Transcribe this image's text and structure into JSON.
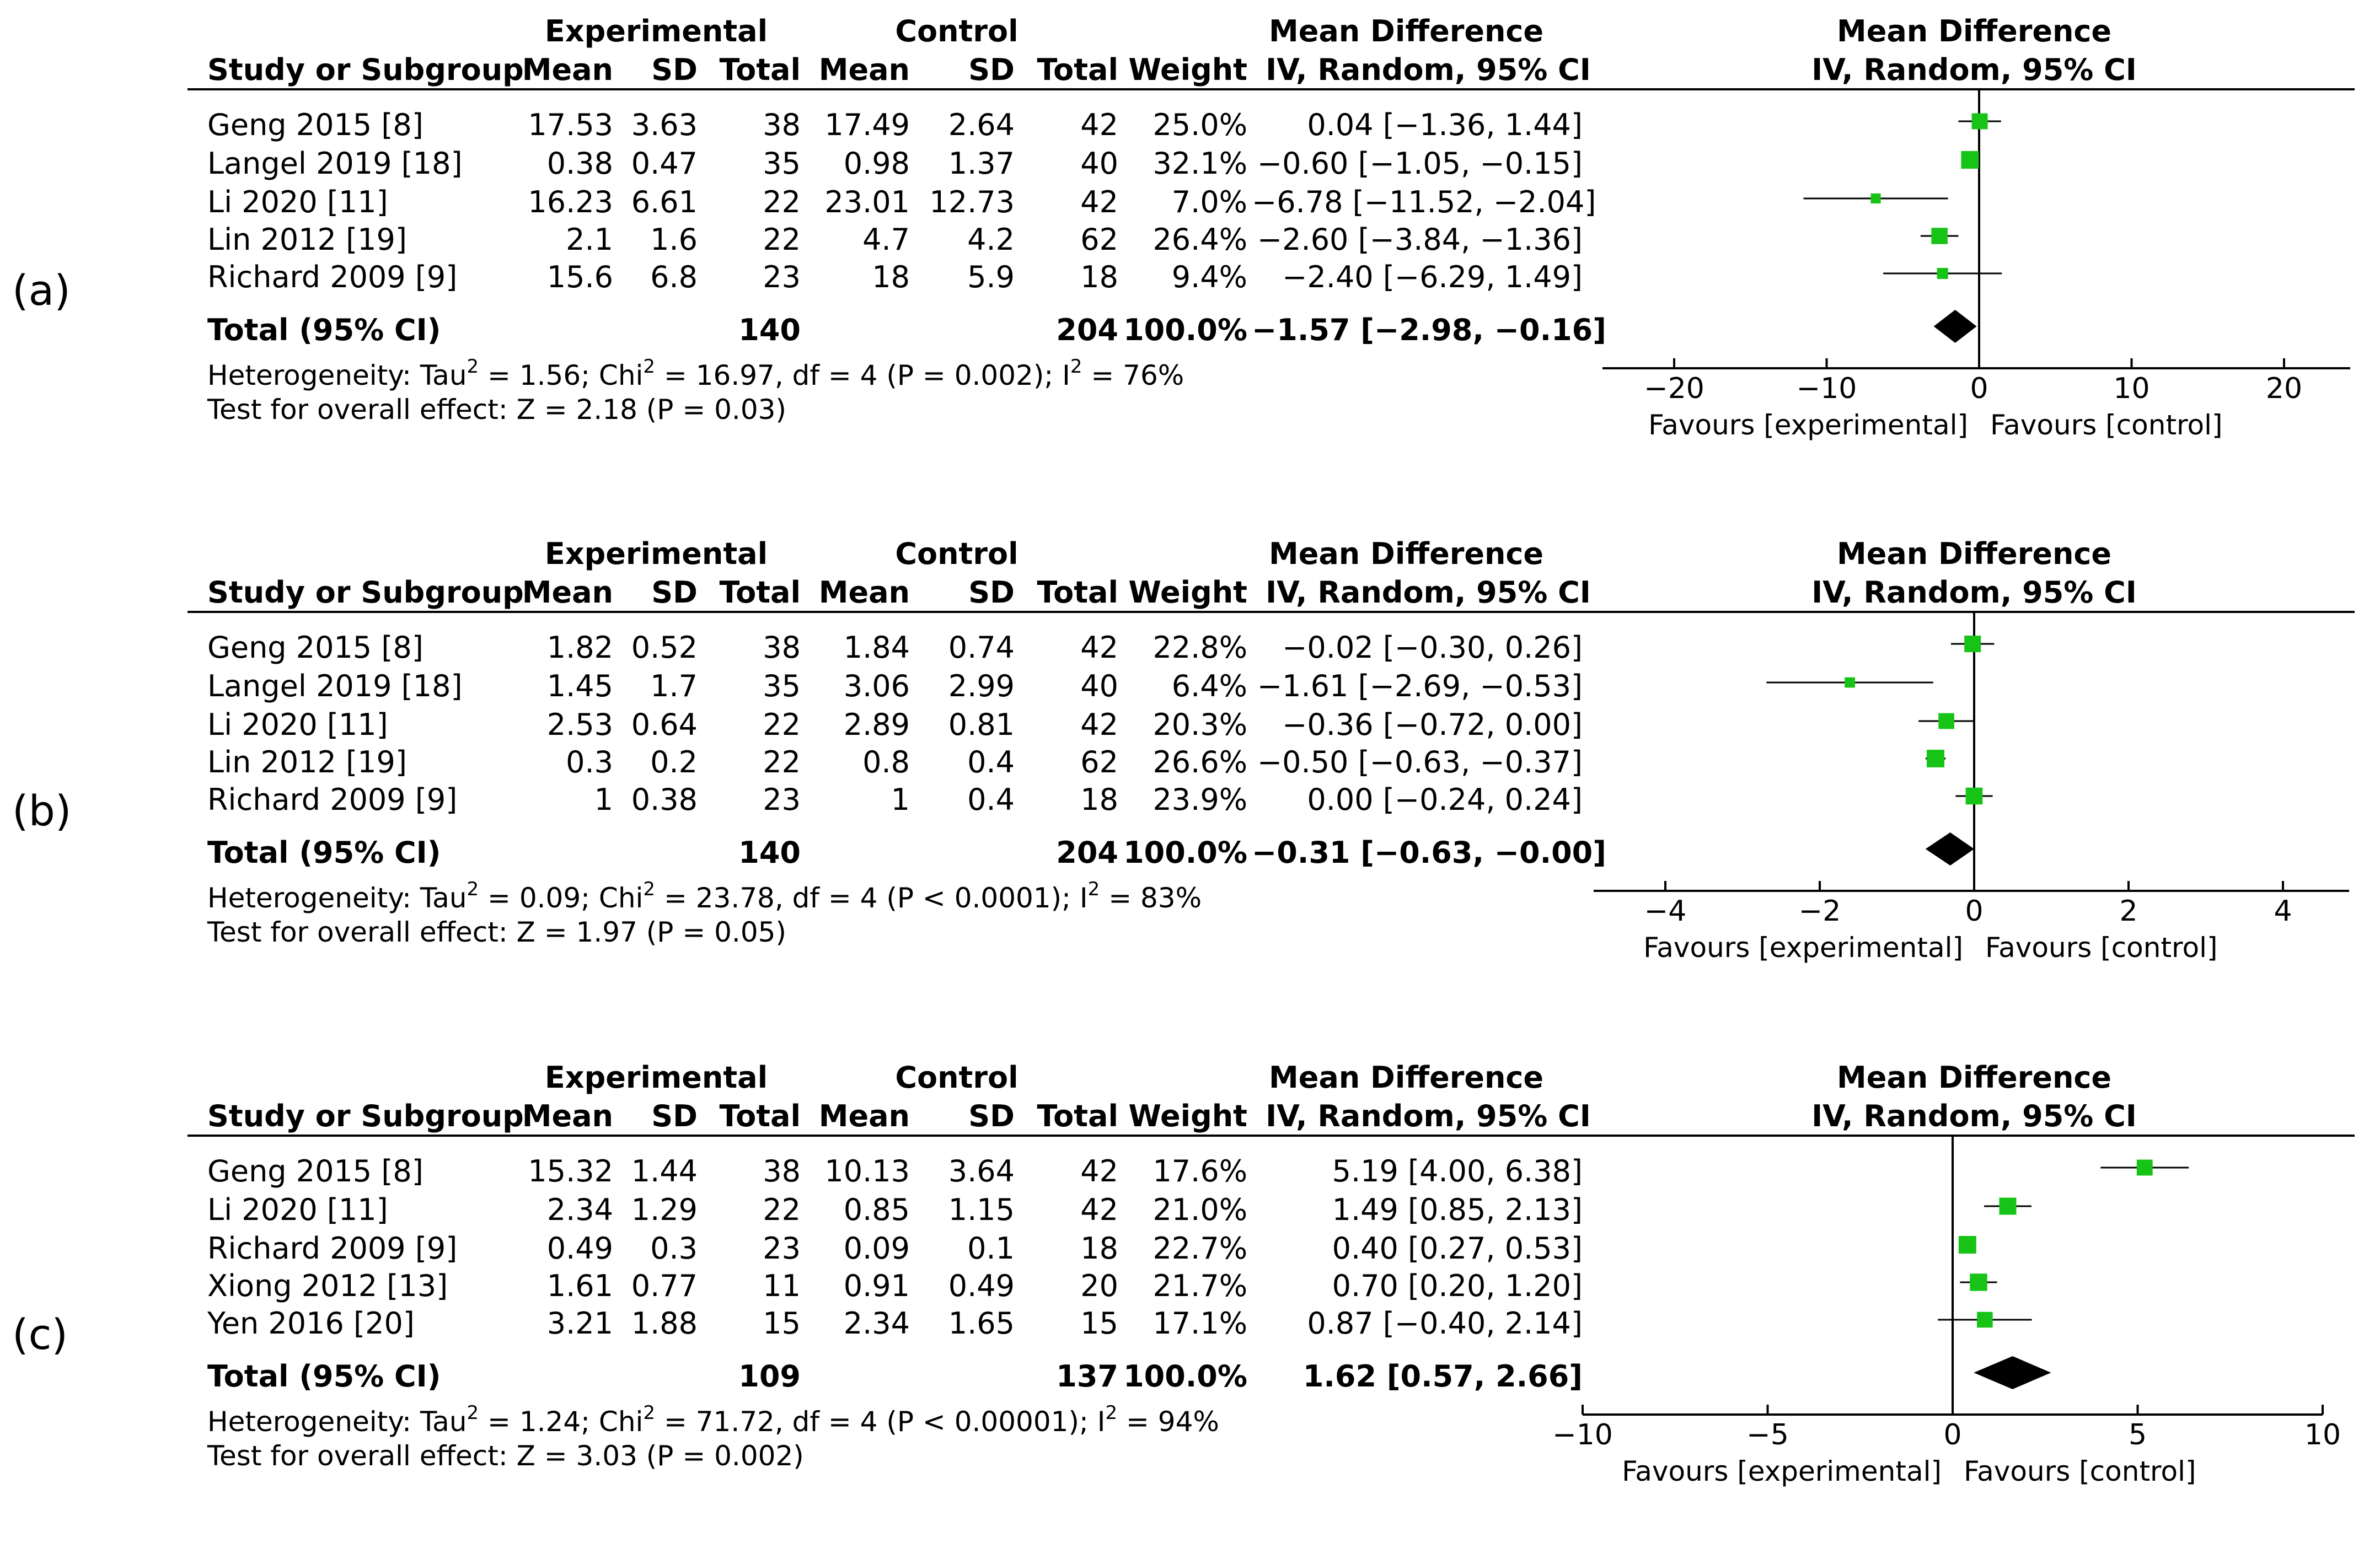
{
  "headers": {
    "experimental": "Experimental",
    "control": "Control",
    "study": "Study or Subgroup",
    "mean": "Mean",
    "sd": "SD",
    "total": "Total",
    "weight": "Weight",
    "md_title": "Mean Difference",
    "md_method": "IV, Random, 95% CI"
  },
  "colors": {
    "marker": "#18c318",
    "diamond": "#000000",
    "line": "#000000"
  },
  "panels": [
    {
      "label": "(a)",
      "rows": [
        {
          "study": "Geng 2015 [8]",
          "e_mean": "17.53",
          "e_sd": "3.63",
          "e_total": "38",
          "c_mean": "17.49",
          "c_sd": "2.64",
          "c_total": "42",
          "weight": "25.0%",
          "ci": "0.04 [−1.36, 1.44]"
        },
        {
          "study": "Langel 2019 [18]",
          "e_mean": "0.38",
          "e_sd": "0.47",
          "e_total": "35",
          "c_mean": "0.98",
          "c_sd": "1.37",
          "c_total": "40",
          "weight": "32.1%",
          "ci": "−0.60 [−1.05, −0.15]"
        },
        {
          "study": "Li 2020 [11]",
          "e_mean": "16.23",
          "e_sd": "6.61",
          "e_total": "22",
          "c_mean": "23.01",
          "c_sd": "12.73",
          "c_total": "42",
          "weight": "7.0%",
          "ci": "−6.78 [−11.52, −2.04]"
        },
        {
          "study": "Lin 2012 [19]",
          "e_mean": "2.1",
          "e_sd": "1.6",
          "e_total": "22",
          "c_mean": "4.7",
          "c_sd": "4.2",
          "c_total": "62",
          "weight": "26.4%",
          "ci": "−2.60 [−3.84, −1.36]"
        },
        {
          "study": "Richard 2009 [9]",
          "e_mean": "15.6",
          "e_sd": "6.8",
          "e_total": "23",
          "c_mean": "18",
          "c_sd": "5.9",
          "c_total": "18",
          "weight": "9.4%",
          "ci": "−2.40 [−6.29, 1.49]"
        }
      ],
      "total": {
        "label": "Total (95% CI)",
        "e_total": "140",
        "c_total": "204",
        "weight": "100.0%",
        "ci": "−1.57 [−2.98, −0.16]"
      },
      "heterogeneity": {
        "prefix": "Heterogeneity: Tau",
        "tau_sup": "2",
        "mid": " = 1.56; Chi",
        "chi_sup": "2",
        "rest": " = 16.97, df = 4 (P = 0.002); I",
        "i_sup": "2",
        "end": " = 76%"
      },
      "overall": "Test for overall effect: Z = 2.18 (P = 0.03)",
      "axis_ticks": [
        "−20",
        "−10",
        "0",
        "10",
        "20"
      ],
      "favours_left": "Favours [experimental]",
      "favours_right": "Favours [control]"
    },
    {
      "label": "(b)",
      "rows": [
        {
          "study": "Geng 2015 [8]",
          "e_mean": "1.82",
          "e_sd": "0.52",
          "e_total": "38",
          "c_mean": "1.84",
          "c_sd": "0.74",
          "c_total": "42",
          "weight": "22.8%",
          "ci": "−0.02 [−0.30, 0.26]"
        },
        {
          "study": "Langel 2019 [18]",
          "e_mean": "1.45",
          "e_sd": "1.7",
          "e_total": "35",
          "c_mean": "3.06",
          "c_sd": "2.99",
          "c_total": "40",
          "weight": "6.4%",
          "ci": "−1.61 [−2.69, −0.53]"
        },
        {
          "study": "Li 2020 [11]",
          "e_mean": "2.53",
          "e_sd": "0.64",
          "e_total": "22",
          "c_mean": "2.89",
          "c_sd": "0.81",
          "c_total": "42",
          "weight": "20.3%",
          "ci": "−0.36 [−0.72, 0.00]"
        },
        {
          "study": "Lin 2012 [19]",
          "e_mean": "0.3",
          "e_sd": "0.2",
          "e_total": "22",
          "c_mean": "0.8",
          "c_sd": "0.4",
          "c_total": "62",
          "weight": "26.6%",
          "ci": "−0.50 [−0.63, −0.37]"
        },
        {
          "study": "Richard 2009 [9]",
          "e_mean": "1",
          "e_sd": "0.38",
          "e_total": "23",
          "c_mean": "1",
          "c_sd": "0.4",
          "c_total": "18",
          "weight": "23.9%",
          "ci": "0.00 [−0.24, 0.24]"
        }
      ],
      "total": {
        "label": "Total (95% CI)",
        "e_total": "140",
        "c_total": "204",
        "weight": "100.0%",
        "ci": "−0.31 [−0.63, −0.00]"
      },
      "heterogeneity": {
        "prefix": "Heterogeneity: Tau",
        "tau_sup": "2",
        "mid": " = 0.09; Chi",
        "chi_sup": "2",
        "rest": " = 23.78, df = 4 (P < 0.0001); I",
        "i_sup": "2",
        "end": " = 83%"
      },
      "overall": "Test for overall effect: Z = 1.97 (P = 0.05)",
      "axis_ticks": [
        "−4",
        "−2",
        "0",
        "2",
        "4"
      ],
      "favours_left": "Favours [experimental]",
      "favours_right": "Favours [control]"
    },
    {
      "label": "(c)",
      "rows": [
        {
          "study": "Geng 2015 [8]",
          "e_mean": "15.32",
          "e_sd": "1.44",
          "e_total": "38",
          "c_mean": "10.13",
          "c_sd": "3.64",
          "c_total": "42",
          "weight": "17.6%",
          "ci": "5.19 [4.00, 6.38]"
        },
        {
          "study": "Li 2020 [11]",
          "e_mean": "2.34",
          "e_sd": "1.29",
          "e_total": "22",
          "c_mean": "0.85",
          "c_sd": "1.15",
          "c_total": "42",
          "weight": "21.0%",
          "ci": "1.49 [0.85, 2.13]"
        },
        {
          "study": "Richard 2009 [9]",
          "e_mean": "0.49",
          "e_sd": "0.3",
          "e_total": "23",
          "c_mean": "0.09",
          "c_sd": "0.1",
          "c_total": "18",
          "weight": "22.7%",
          "ci": "0.40 [0.27, 0.53]"
        },
        {
          "study": "Xiong 2012 [13]",
          "e_mean": "1.61",
          "e_sd": "0.77",
          "e_total": "11",
          "c_mean": "0.91",
          "c_sd": "0.49",
          "c_total": "20",
          "weight": "21.7%",
          "ci": "0.70 [0.20, 1.20]"
        },
        {
          "study": "Yen 2016 [20]",
          "e_mean": "3.21",
          "e_sd": "1.88",
          "e_total": "15",
          "c_mean": "2.34",
          "c_sd": "1.65",
          "c_total": "15",
          "weight": "17.1%",
          "ci": "0.87 [−0.40, 2.14]"
        }
      ],
      "total": {
        "label": "Total (95% CI)",
        "e_total": "109",
        "c_total": "137",
        "weight": "100.0%",
        "ci": "1.62 [0.57, 2.66]"
      },
      "heterogeneity": {
        "prefix": "Heterogeneity: Tau",
        "tau_sup": "2",
        "mid": " = 1.24; Chi",
        "chi_sup": "2",
        "rest": " = 71.72, df = 4 (P < 0.00001); I",
        "i_sup": "2",
        "end": " = 94%"
      },
      "overall": "Test for overall effect: Z = 3.03 (P = 0.002)",
      "axis_ticks": [
        "−10",
        "−5",
        "0",
        "5",
        "10"
      ],
      "favours_left": "Favours [experimental]",
      "favours_right": "Favours [control]"
    }
  ],
  "chart_data": [
    {
      "type": "forest",
      "title": "Mean Difference IV, Random, 95% CI",
      "xlim": [
        -25,
        25
      ],
      "xticks": [
        -20,
        -10,
        0,
        10,
        20
      ],
      "studies": [
        "Geng 2015 [8]",
        "Langel 2019 [18]",
        "Li 2020 [11]",
        "Lin 2012 [19]",
        "Richard 2009 [9]"
      ],
      "estimate": [
        0.04,
        -0.6,
        -6.78,
        -2.6,
        -2.4
      ],
      "ci_low": [
        -1.36,
        -1.05,
        -11.52,
        -3.84,
        -6.29
      ],
      "ci_high": [
        1.44,
        -0.15,
        -2.04,
        -1.36,
        1.49
      ],
      "weight": [
        25.0,
        32.1,
        7.0,
        26.4,
        9.4
      ],
      "pooled": {
        "estimate": -1.57,
        "ci_low": -2.98,
        "ci_high": -0.16
      }
    },
    {
      "type": "forest",
      "title": "Mean Difference IV, Random, 95% CI",
      "xlim": [
        -5,
        5
      ],
      "xticks": [
        -4,
        -2,
        0,
        2,
        4
      ],
      "studies": [
        "Geng 2015 [8]",
        "Langel 2019 [18]",
        "Li 2020 [11]",
        "Lin 2012 [19]",
        "Richard 2009 [9]"
      ],
      "estimate": [
        -0.02,
        -1.61,
        -0.36,
        -0.5,
        0.0
      ],
      "ci_low": [
        -0.3,
        -2.69,
        -0.72,
        -0.63,
        -0.24
      ],
      "ci_high": [
        0.26,
        -0.53,
        0.0,
        -0.37,
        0.24
      ],
      "weight": [
        22.8,
        6.4,
        20.3,
        26.6,
        23.9
      ],
      "pooled": {
        "estimate": -0.31,
        "ci_low": -0.63,
        "ci_high": -0.0
      }
    },
    {
      "type": "forest",
      "title": "Mean Difference IV, Random, 95% CI",
      "xlim": [
        -10,
        10
      ],
      "xticks": [
        -10,
        -5,
        0,
        5,
        10
      ],
      "studies": [
        "Geng 2015 [8]",
        "Li 2020 [11]",
        "Richard 2009 [9]",
        "Xiong 2012 [13]",
        "Yen 2016 [20]"
      ],
      "estimate": [
        5.19,
        1.49,
        0.4,
        0.7,
        0.87
      ],
      "ci_low": [
        4.0,
        0.85,
        0.27,
        0.2,
        -0.4
      ],
      "ci_high": [
        6.38,
        2.13,
        0.53,
        1.2,
        2.14
      ],
      "weight": [
        17.6,
        21.0,
        22.7,
        21.7,
        17.1
      ],
      "pooled": {
        "estimate": 1.62,
        "ci_low": 0.57,
        "ci_high": 2.66
      }
    }
  ]
}
